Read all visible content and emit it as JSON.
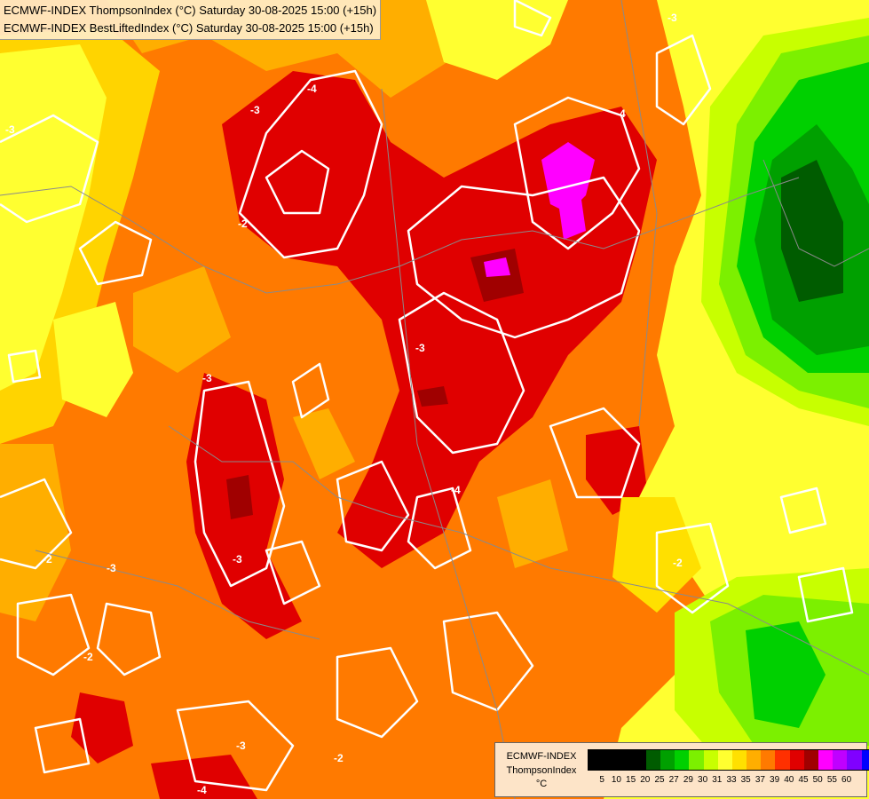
{
  "title": {
    "line1": "ECMWF-INDEX ThompsonIndex (°C) Saturday 30-08-2025 15:00 (+15h)",
    "line2": "ECMWF-INDEX BestLiftedIndex (°C) Saturday 30-08-2025 15:00 (+15h)"
  },
  "contour_labels": [
    "-4",
    "-3",
    "-3",
    "-2",
    "-4",
    "-3",
    "-3",
    "-3",
    "-4",
    "-3",
    "-2",
    "-2",
    "-3",
    "-2",
    "-4",
    "-3",
    "-2",
    "-2"
  ],
  "legend": {
    "model": "ECMWF-INDEX",
    "parameter": "ThompsonIndex",
    "unit": "°C",
    "ticks": [
      "5",
      "10",
      "15",
      "20",
      "25",
      "27",
      "29",
      "30",
      "31",
      "33",
      "35",
      "37",
      "39",
      "40",
      "45",
      "50",
      "55",
      "60"
    ],
    "colors": [
      "#000000",
      "#000000",
      "#000000",
      "#000000",
      "#005c00",
      "#00a000",
      "#00d000",
      "#7cf000",
      "#c8ff00",
      "#ffff30",
      "#ffe000",
      "#ffae00",
      "#ff7a00",
      "#ff3000",
      "#e00000",
      "#a00000",
      "#ff00ff",
      "#c000ff",
      "#8000ff",
      "#0000ff"
    ]
  }
}
